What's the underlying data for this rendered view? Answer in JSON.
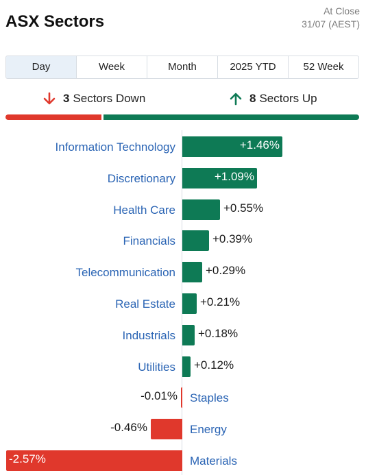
{
  "header": {
    "title": "ASX Sectors",
    "status_line1": "At Close",
    "status_line2": "31/07 (AEST)"
  },
  "tabs": [
    {
      "label": "Day",
      "active": true
    },
    {
      "label": "Week",
      "active": false
    },
    {
      "label": "Month",
      "active": false
    },
    {
      "label": "2025 YTD",
      "active": false
    },
    {
      "label": "52 Week",
      "active": false
    }
  ],
  "summary": {
    "down_count": "3",
    "down_label": "Sectors Down",
    "up_count": "8",
    "up_label": "Sectors Up"
  },
  "colors": {
    "up": "#0e7a55",
    "down": "#e0382c",
    "label": "#2a64b4"
  },
  "icons": {
    "down": "arrow-down-icon",
    "up": "arrow-up-icon"
  },
  "chart_data": {
    "type": "bar",
    "categories": [
      "Information Technology",
      "Discretionary",
      "Health Care",
      "Financials",
      "Telecommunication",
      "Real Estate",
      "Industrials",
      "Utilities",
      "Staples",
      "Energy",
      "Materials"
    ],
    "values": [
      1.46,
      1.09,
      0.55,
      0.39,
      0.29,
      0.21,
      0.18,
      0.12,
      -0.01,
      -0.46,
      -2.57
    ],
    "value_labels": [
      "+1.46%",
      "+1.09%",
      "+0.55%",
      "+0.39%",
      "+0.29%",
      "+0.21%",
      "+0.18%",
      "+0.12%",
      "-0.01%",
      "-0.46%",
      "-2.57%"
    ],
    "title": "",
    "xlabel": "",
    "ylabel": ""
  }
}
